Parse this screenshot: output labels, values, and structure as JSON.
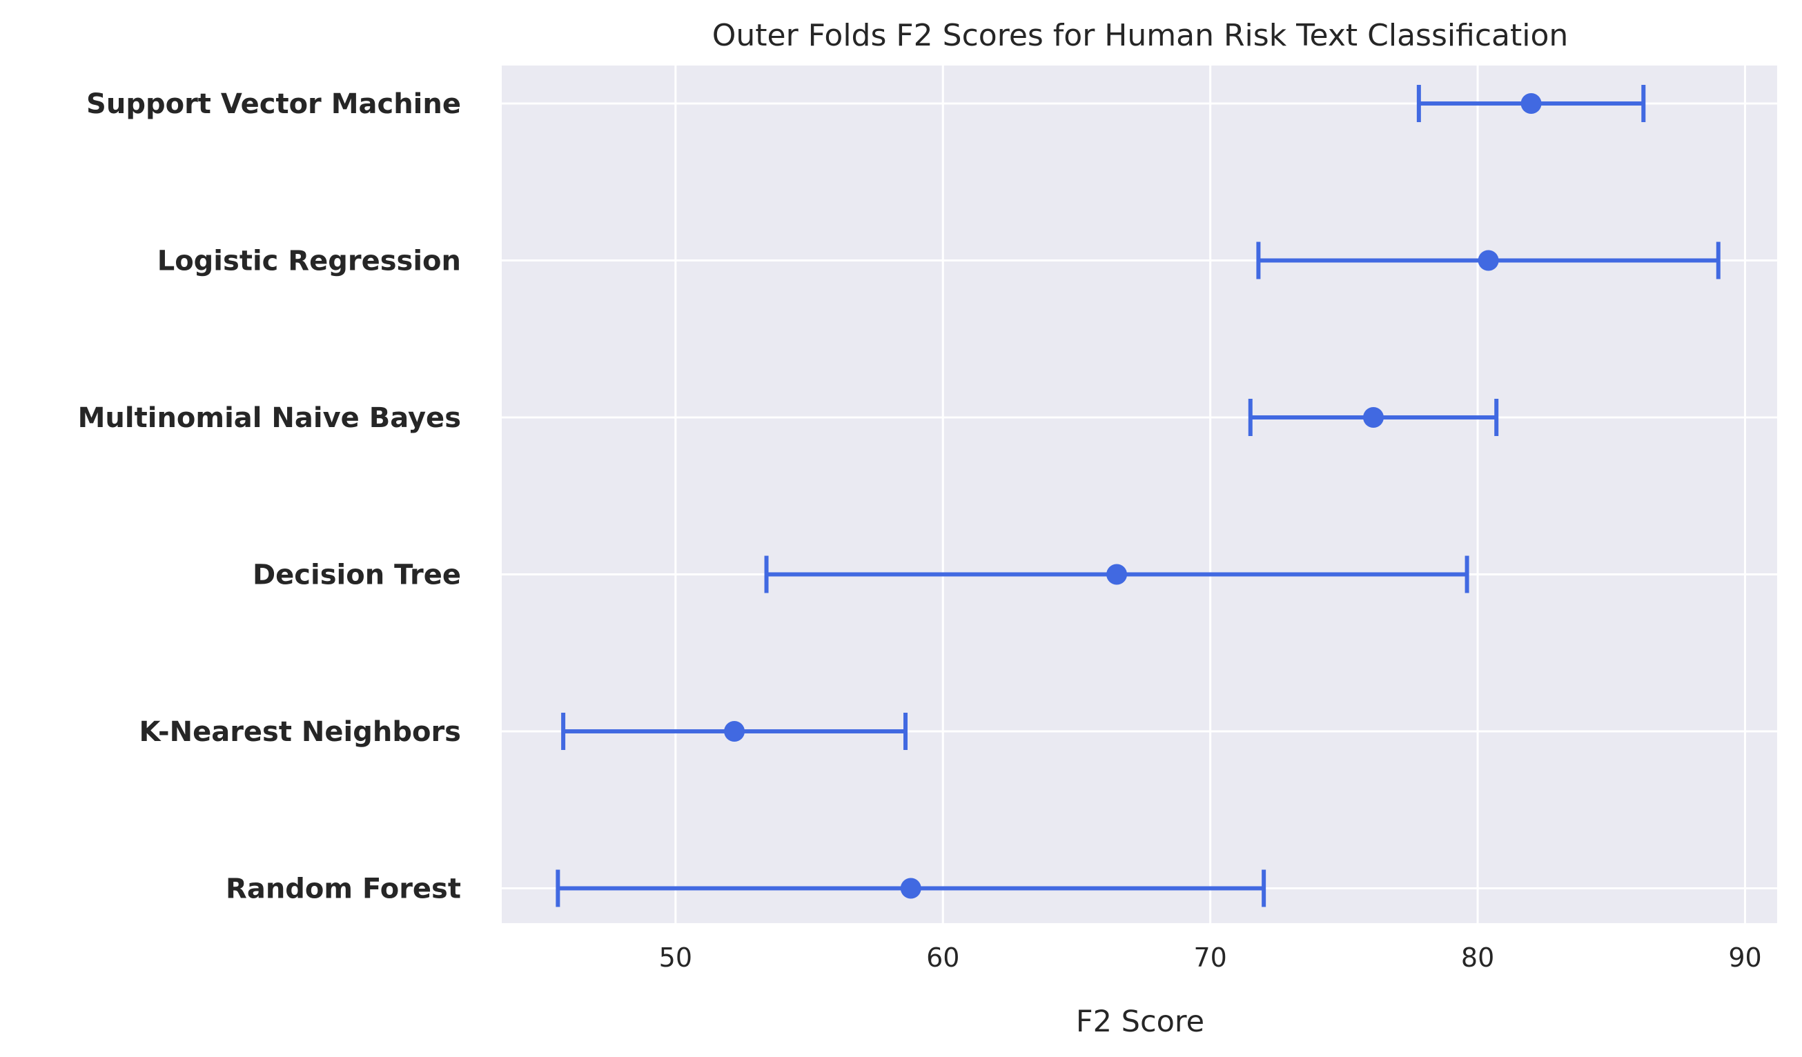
{
  "chart_data": {
    "type": "scatter",
    "title": "Outer Folds F2 Scores for Human Risk Text Classification",
    "xlabel": "F2 Score",
    "ylabel": "",
    "xlim": [
      43.5,
      91.2
    ],
    "xticks": [
      50,
      60,
      70,
      80,
      90
    ],
    "grid": true,
    "orientation": "horizontal-errorbar",
    "color": "#4169E1",
    "background": "#EAEAF2",
    "categories": [
      "Support Vector Machine",
      "Logistic Regression",
      "Multinomial Naive Bayes",
      "Decision Tree",
      "K-Nearest Neighbors",
      "Random Forest"
    ],
    "values": [
      82.0,
      80.4,
      76.1,
      66.5,
      52.2,
      58.8
    ],
    "lower": [
      77.8,
      71.8,
      71.5,
      53.4,
      45.8,
      45.6
    ],
    "upper": [
      86.2,
      89.0,
      80.7,
      79.6,
      58.6,
      72.0
    ]
  }
}
